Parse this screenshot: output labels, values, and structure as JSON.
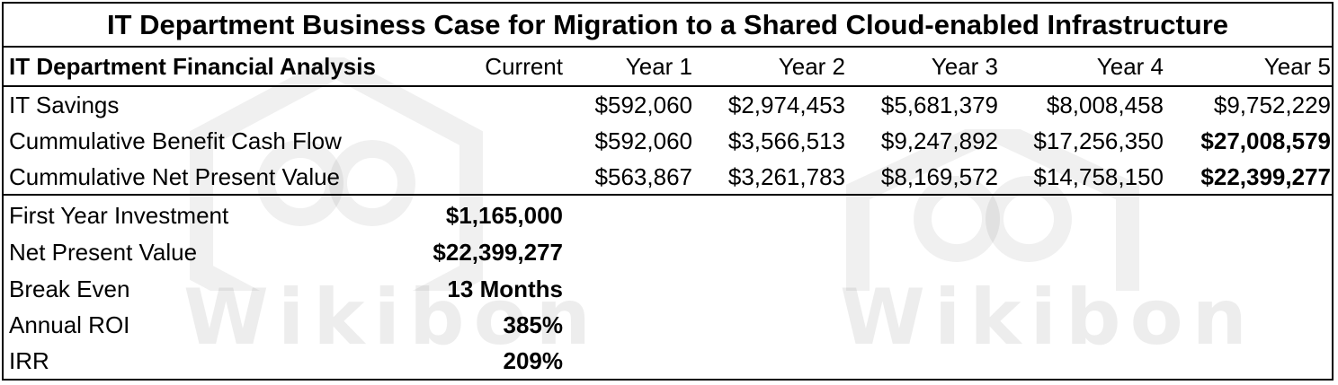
{
  "title": "IT Department Business Case for Migration to a Shared Cloud-enabled Infrastructure",
  "header": {
    "label": "IT Department Financial Analysis",
    "columns": [
      "Current",
      "Year 1",
      "Year 2",
      "Year 3",
      "Year 4",
      "Year 5"
    ]
  },
  "yearly_rows": [
    {
      "label": "IT Savings",
      "values": [
        "",
        "$592,060",
        "$2,974,453",
        "$5,681,379",
        "$8,008,458",
        "$9,752,229"
      ]
    },
    {
      "label": "Cummulative Benefit Cash Flow",
      "values": [
        "",
        "$592,060",
        "$3,566,513",
        "$9,247,892",
        "$17,256,350",
        "$27,008,579"
      ]
    },
    {
      "label": "Cummulative Net Present Value",
      "values": [
        "",
        "$563,867",
        "$3,261,783",
        "$8,169,572",
        "$14,758,150",
        "$22,399,277"
      ]
    }
  ],
  "summary_rows": [
    {
      "label": "First Year Investment",
      "value": "$1,165,000"
    },
    {
      "label": "Net Present Value",
      "value": "$22,399,277"
    },
    {
      "label": "Break Even",
      "value": "13 Months"
    },
    {
      "label": "Annual ROI",
      "value": "385%"
    },
    {
      "label": "IRR",
      "value": "209%"
    }
  ],
  "watermark": "Wikibon",
  "watermark_icon": "hexagon-logo-icon"
}
